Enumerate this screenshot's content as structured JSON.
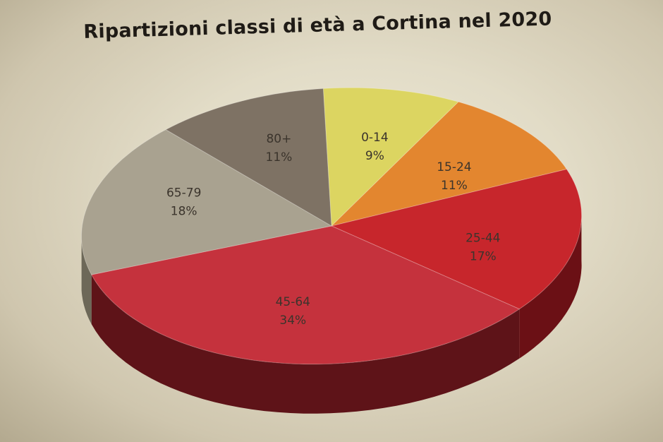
{
  "chart_data": {
    "type": "pie",
    "title": "Ripartizioni classi di età a Cortina nel 2020",
    "categories": [
      "0-14",
      "15-24",
      "25-44",
      "45-64",
      "65-79",
      "80+"
    ],
    "values": [
      9,
      11,
      17,
      34,
      18,
      11
    ],
    "value_labels": [
      "9%",
      "11%",
      "17%",
      "34%",
      "18%",
      "11%"
    ],
    "colors": [
      "#dcd561",
      "#e3862f",
      "#c7262c",
      "#c5323d",
      "#a9a290",
      "#7e7264"
    ],
    "side_colors": [
      "#8a8530",
      "#8d4c18",
      "#6b1015",
      "#5e1318",
      "#6d6858",
      "#4b4439"
    ],
    "label_colors": [
      "#4b4630",
      "#5b2a10",
      "#4a0d10",
      "#f1e2de",
      "#4e493f",
      "#f2efe8"
    ],
    "legend": "none",
    "grid": false
  }
}
